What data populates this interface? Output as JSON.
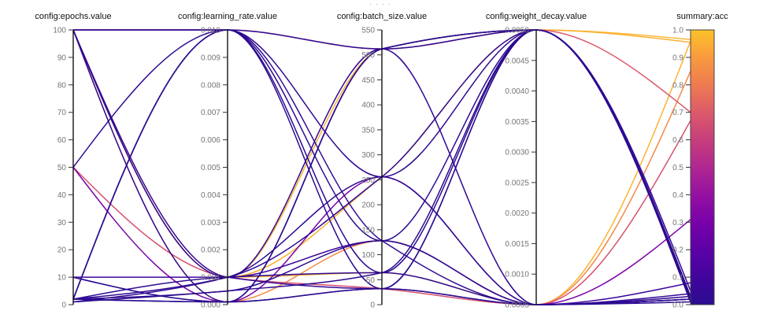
{
  "panel": {
    "drag_handle": "····"
  },
  "style": {
    "background": "#ffffff",
    "axis_color": "#000000",
    "tick_color": "#333333",
    "tick_label_color": "#757575",
    "title_color": "#111111",
    "drag_dots_color": "#9a9a9a",
    "colorbar_border": "#444444"
  },
  "chart_data": {
    "type": "parallel-coordinates",
    "title": "",
    "color_by": "acc",
    "legend_position": "right-colorbar",
    "grid": false,
    "axes": [
      {
        "key": "epochs",
        "title": "config:epochs.value",
        "min": 0,
        "max": 100,
        "tick_step": 10,
        "tick_decimals": 0
      },
      {
        "key": "learning_rate",
        "title": "config:learning_rate.value",
        "min": 0,
        "max": 0.01,
        "tick_step": 0.001,
        "tick_decimals": 3
      },
      {
        "key": "batch_size",
        "title": "config:batch_size.value",
        "min": 0,
        "max": 550,
        "tick_step": 50,
        "tick_decimals": 0
      },
      {
        "key": "weight_decay",
        "title": "config:weight_decay.value",
        "min": 0.0005,
        "max": 0.005,
        "tick_step": 0.0005,
        "tick_decimals": 4
      },
      {
        "key": "acc",
        "title": "summary:acc",
        "min": 0,
        "max": 1,
        "tick_step": 0.1,
        "tick_decimals": 1,
        "colorbar": true
      }
    ],
    "colormap": [
      {
        "t": 0.0,
        "color": "#2a0d8f"
      },
      {
        "t": 0.1,
        "color": "#41049d"
      },
      {
        "t": 0.2,
        "color": "#5c01a6"
      },
      {
        "t": 0.3,
        "color": "#7801a8"
      },
      {
        "t": 0.4,
        "color": "#9511a1"
      },
      {
        "t": 0.5,
        "color": "#b02791"
      },
      {
        "t": 0.6,
        "color": "#c73e7c"
      },
      {
        "t": 0.7,
        "color": "#dc5a6a"
      },
      {
        "t": 0.8,
        "color": "#ee7b51"
      },
      {
        "t": 0.9,
        "color": "#f99a3e"
      },
      {
        "t": 1.0,
        "color": "#fdc229"
      }
    ],
    "runs": [
      {
        "epochs": 100,
        "learning_rate": 0.001,
        "batch_size": 512,
        "weight_decay": 0.005,
        "acc": 0.965
      },
      {
        "epochs": 100,
        "learning_rate": 0.001,
        "batch_size": 256,
        "weight_decay": 0.005,
        "acc": 0.955
      },
      {
        "epochs": 100,
        "learning_rate": 0.001,
        "batch_size": 64,
        "weight_decay": 0.0005,
        "acc": 0.96
      },
      {
        "epochs": 100,
        "learning_rate": 0.0001,
        "batch_size": 128,
        "weight_decay": 0.0005,
        "acc": 0.85
      },
      {
        "epochs": 100,
        "learning_rate": 0.01,
        "batch_size": 512,
        "weight_decay": 0.005,
        "acc": 0.7
      },
      {
        "epochs": 50,
        "learning_rate": 0.001,
        "batch_size": 32,
        "weight_decay": 0.0005,
        "acc": 0.67
      },
      {
        "epochs": 50,
        "learning_rate": 0.0001,
        "batch_size": 256,
        "weight_decay": 0.0005,
        "acc": 0.31
      },
      {
        "epochs": 10,
        "learning_rate": 0.001,
        "batch_size": 128,
        "weight_decay": 0.0005,
        "acc": 0.08
      },
      {
        "epochs": 100,
        "learning_rate": 0.01,
        "batch_size": 256,
        "weight_decay": 0.005,
        "acc": 0.02
      },
      {
        "epochs": 100,
        "learning_rate": 0.01,
        "batch_size": 128,
        "weight_decay": 0.0005,
        "acc": 0.03
      },
      {
        "epochs": 100,
        "learning_rate": 0.0001,
        "batch_size": 512,
        "weight_decay": 0.005,
        "acc": 0.02
      },
      {
        "epochs": 100,
        "learning_rate": 0.001,
        "batch_size": 512,
        "weight_decay": 0.0005,
        "acc": 0.04
      },
      {
        "epochs": 100,
        "learning_rate": 0.001,
        "batch_size": 32,
        "weight_decay": 0.005,
        "acc": 0.05
      },
      {
        "epochs": 50,
        "learning_rate": 0.01,
        "batch_size": 64,
        "weight_decay": 0.005,
        "acc": 0.02
      },
      {
        "epochs": 10,
        "learning_rate": 0.0001,
        "batch_size": 512,
        "weight_decay": 0.005,
        "acc": 0.01
      },
      {
        "epochs": 10,
        "learning_rate": 0.0001,
        "batch_size": 32,
        "weight_decay": 0.0005,
        "acc": 0.02
      },
      {
        "epochs": 2,
        "learning_rate": 0.01,
        "batch_size": 512,
        "weight_decay": 0.005,
        "acc": 0.02
      },
      {
        "epochs": 2,
        "learning_rate": 0.01,
        "batch_size": 128,
        "weight_decay": 0.005,
        "acc": 0.02
      },
      {
        "epochs": 2,
        "learning_rate": 0.01,
        "batch_size": 32,
        "weight_decay": 0.005,
        "acc": 0.01
      },
      {
        "epochs": 2,
        "learning_rate": 0.001,
        "batch_size": 256,
        "weight_decay": 0.005,
        "acc": 0.03
      },
      {
        "epochs": 2,
        "learning_rate": 0.001,
        "batch_size": 64,
        "weight_decay": 0.0005,
        "acc": 0.02
      },
      {
        "epochs": 2,
        "learning_rate": 0.0001,
        "batch_size": 512,
        "weight_decay": 0.005,
        "acc": 0.01
      },
      {
        "epochs": 2,
        "learning_rate": 0.0005,
        "batch_size": 128,
        "weight_decay": 0.0005,
        "acc": 0.02
      },
      {
        "epochs": 2,
        "learning_rate": 0.0001,
        "batch_size": 32,
        "weight_decay": 0.0005,
        "acc": 0.01
      },
      {
        "epochs": 1,
        "learning_rate": 0.001,
        "batch_size": 256,
        "weight_decay": 0.0005,
        "acc": 0.02
      },
      {
        "epochs": 1,
        "learning_rate": 0.0005,
        "batch_size": 64,
        "weight_decay": 0.005,
        "acc": 0.01
      }
    ]
  }
}
